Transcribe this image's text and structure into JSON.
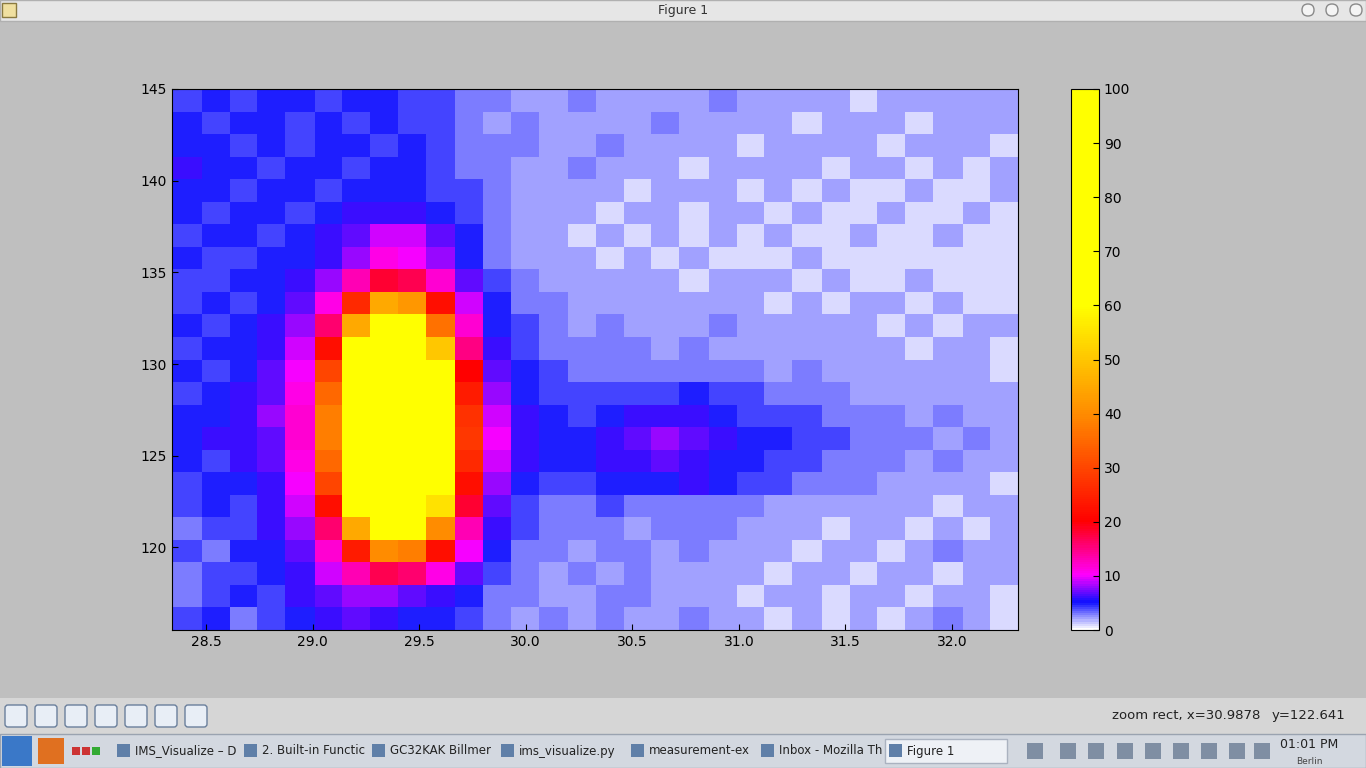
{
  "window": {
    "title": "Figure 1",
    "status": [
      "zoom rect, x=30.9878",
      "y=122.641"
    ]
  },
  "chart_data": {
    "type": "heatmap",
    "x_edges": [
      28.34,
      28.48,
      28.61,
      28.74,
      28.87,
      29.01,
      29.14,
      29.27,
      29.4,
      29.53,
      29.67,
      29.8,
      29.93,
      30.06,
      30.2,
      30.33,
      30.46,
      30.59,
      30.72,
      30.86,
      30.99,
      31.12,
      31.25,
      31.39,
      31.52,
      31.65,
      31.78,
      31.91,
      32.05,
      32.18,
      32.31
    ],
    "y_edges": [
      115.5,
      116.73,
      117.96,
      119.19,
      120.42,
      121.65,
      122.87,
      124.1,
      125.33,
      126.56,
      127.79,
      129.02,
      130.25,
      131.48,
      132.71,
      133.94,
      135.17,
      136.39,
      137.62,
      138.85,
      140.08,
      141.31,
      142.54,
      143.77,
      145.0
    ],
    "cells": [
      [
        4,
        5,
        3,
        4,
        5,
        6,
        7,
        6,
        5,
        5,
        4,
        3,
        2,
        3,
        2,
        3,
        2,
        2,
        3,
        2,
        2,
        1,
        2,
        1,
        2,
        1,
        2,
        3,
        2,
        1
      ],
      [
        3,
        4,
        5,
        4,
        6,
        7,
        8,
        8,
        7,
        6,
        5,
        3,
        3,
        2,
        2,
        3,
        3,
        2,
        2,
        2,
        1,
        2,
        2,
        1,
        2,
        2,
        1,
        2,
        2,
        1
      ],
      [
        3,
        4,
        4,
        5,
        6,
        9,
        13,
        17,
        16,
        11,
        7,
        4,
        3,
        2,
        3,
        2,
        3,
        2,
        2,
        2,
        2,
        1,
        2,
        2,
        1,
        2,
        2,
        1,
        2,
        2
      ],
      [
        4,
        3,
        5,
        5,
        7,
        12,
        24,
        40,
        38,
        22,
        10,
        5,
        3,
        3,
        2,
        3,
        3,
        2,
        3,
        2,
        2,
        2,
        1,
        2,
        2,
        1,
        2,
        3,
        2,
        2
      ],
      [
        3,
        4,
        4,
        6,
        8,
        16,
        45,
        70,
        68,
        40,
        13,
        6,
        4,
        3,
        3,
        3,
        2,
        3,
        3,
        3,
        2,
        2,
        2,
        1,
        2,
        2,
        1,
        2,
        1,
        2
      ],
      [
        4,
        5,
        4,
        6,
        9,
        22,
        62,
        90,
        88,
        55,
        18,
        7,
        4,
        3,
        3,
        4,
        3,
        3,
        3,
        3,
        3,
        2,
        2,
        2,
        2,
        2,
        2,
        1,
        2,
        2
      ],
      [
        4,
        5,
        5,
        6,
        10,
        30,
        75,
        100,
        100,
        65,
        22,
        8,
        5,
        4,
        4,
        5,
        5,
        5,
        6,
        5,
        4,
        4,
        3,
        3,
        3,
        2,
        2,
        2,
        2,
        1
      ],
      [
        5,
        4,
        6,
        7,
        11,
        35,
        85,
        100,
        100,
        72,
        26,
        9,
        6,
        5,
        5,
        6,
        6,
        7,
        6,
        5,
        5,
        4,
        4,
        3,
        3,
        3,
        2,
        3,
        2,
        2
      ],
      [
        5,
        6,
        6,
        7,
        12,
        38,
        90,
        100,
        100,
        78,
        28,
        10,
        6,
        5,
        5,
        6,
        7,
        8,
        7,
        6,
        5,
        5,
        4,
        4,
        3,
        3,
        3,
        2,
        3,
        2
      ],
      [
        5,
        5,
        6,
        8,
        12,
        38,
        90,
        100,
        100,
        78,
        27,
        9,
        6,
        5,
        4,
        5,
        6,
        6,
        6,
        5,
        4,
        4,
        4,
        3,
        3,
        3,
        2,
        3,
        2,
        2
      ],
      [
        4,
        5,
        6,
        7,
        11,
        35,
        85,
        100,
        100,
        72,
        24,
        8,
        5,
        4,
        4,
        4,
        4,
        4,
        5,
        4,
        4,
        3,
        3,
        3,
        2,
        2,
        2,
        2,
        2,
        2
      ],
      [
        5,
        4,
        5,
        7,
        10,
        30,
        75,
        100,
        98,
        62,
        20,
        7,
        5,
        4,
        3,
        3,
        3,
        3,
        3,
        3,
        3,
        2,
        3,
        2,
        2,
        2,
        2,
        2,
        2,
        1
      ],
      [
        4,
        5,
        5,
        6,
        9,
        22,
        62,
        90,
        88,
        50,
        15,
        6,
        4,
        3,
        3,
        3,
        3,
        2,
        3,
        2,
        2,
        2,
        2,
        2,
        2,
        2,
        1,
        2,
        2,
        1
      ],
      [
        5,
        4,
        5,
        6,
        8,
        16,
        45,
        72,
        70,
        36,
        12,
        5,
        4,
        3,
        2,
        3,
        2,
        2,
        2,
        3,
        2,
        2,
        2,
        2,
        2,
        1,
        2,
        1,
        2,
        2
      ],
      [
        4,
        5,
        4,
        5,
        7,
        11,
        26,
        45,
        42,
        22,
        9,
        5,
        3,
        3,
        2,
        2,
        2,
        2,
        2,
        2,
        2,
        1,
        2,
        1,
        2,
        2,
        1,
        2,
        1,
        1
      ],
      [
        4,
        4,
        5,
        5,
        6,
        8,
        13,
        18,
        17,
        12,
        7,
        4,
        3,
        2,
        2,
        2,
        2,
        2,
        1,
        2,
        2,
        2,
        1,
        2,
        1,
        1,
        2,
        1,
        1,
        1
      ],
      [
        5,
        4,
        4,
        5,
        5,
        6,
        8,
        11,
        10,
        8,
        5,
        3,
        2,
        2,
        2,
        1,
        2,
        1,
        2,
        1,
        1,
        1,
        2,
        1,
        1,
        1,
        1,
        1,
        1,
        1
      ],
      [
        4,
        5,
        5,
        4,
        5,
        6,
        7,
        9,
        9,
        7,
        5,
        3,
        2,
        2,
        1,
        2,
        1,
        2,
        1,
        2,
        1,
        2,
        1,
        1,
        2,
        1,
        1,
        2,
        1,
        1
      ],
      [
        5,
        4,
        5,
        5,
        4,
        5,
        6,
        6,
        6,
        5,
        4,
        3,
        2,
        2,
        2,
        1,
        2,
        2,
        1,
        2,
        2,
        1,
        2,
        1,
        1,
        2,
        1,
        1,
        2,
        1
      ],
      [
        5,
        5,
        4,
        5,
        5,
        4,
        5,
        5,
        5,
        4,
        4,
        3,
        2,
        2,
        2,
        2,
        1,
        2,
        2,
        2,
        1,
        2,
        1,
        2,
        1,
        1,
        2,
        1,
        1,
        2
      ],
      [
        6,
        5,
        5,
        4,
        5,
        5,
        4,
        5,
        5,
        4,
        3,
        3,
        2,
        2,
        3,
        2,
        2,
        2,
        1,
        2,
        2,
        2,
        2,
        1,
        2,
        2,
        1,
        2,
        1,
        2
      ],
      [
        5,
        5,
        4,
        5,
        4,
        5,
        5,
        4,
        5,
        4,
        3,
        3,
        3,
        2,
        2,
        3,
        2,
        2,
        2,
        2,
        1,
        2,
        2,
        2,
        2,
        1,
        2,
        2,
        2,
        1
      ],
      [
        5,
        4,
        5,
        5,
        4,
        5,
        4,
        5,
        4,
        4,
        3,
        2,
        3,
        2,
        2,
        2,
        2,
        3,
        2,
        2,
        2,
        2,
        1,
        2,
        2,
        2,
        1,
        2,
        2,
        2
      ],
      [
        4,
        5,
        4,
        5,
        5,
        4,
        5,
        5,
        4,
        4,
        3,
        3,
        2,
        2,
        3,
        2,
        2,
        2,
        2,
        3,
        2,
        2,
        2,
        2,
        1,
        2,
        2,
        2,
        2,
        2
      ]
    ],
    "xlim": [
      28.34,
      32.31
    ],
    "ylim": [
      115.5,
      145.0
    ],
    "xticks": [
      28.5,
      {
        "value": 29,
        "label": "29.0"
      },
      29.5,
      {
        "value": 30,
        "label": "30.0"
      },
      30.5,
      {
        "value": 31,
        "label": "31.0"
      },
      31.5,
      {
        "value": 32,
        "label": "32.0"
      }
    ],
    "yticks": [
      120,
      125,
      130,
      135,
      140,
      145
    ],
    "colorbar_range": [
      0,
      100
    ],
    "colorbar_ticks": [
      0,
      10,
      20,
      30,
      40,
      50,
      60,
      70,
      80,
      90,
      100
    ]
  },
  "taskbar": {
    "tasks": [
      "IMS_Visualize – D",
      "2. Built-in Functic",
      "GC32KAK Billmer",
      "ims_visualize.py",
      "measurement-ex",
      "Inbox - Mozilla Th",
      "Figure 1"
    ],
    "clock": "01:01 PM",
    "timezone": "Berlin"
  }
}
